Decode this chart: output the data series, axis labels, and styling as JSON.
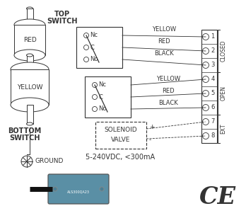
{
  "bg_color": "#ffffff",
  "top_switch_label": [
    "TOP",
    "SWITCH"
  ],
  "bottom_switch_label": [
    "BOTTOM",
    "SWITCH"
  ],
  "ground_label": "GROUND",
  "spec_label": "5-240VDC, <300mA",
  "top_switch_contacts": [
    "Nc",
    "C",
    "No"
  ],
  "bottom_switch_contacts": [
    "Nc",
    "C",
    "No"
  ],
  "top_wire_colors": [
    "YELLOW",
    "RED",
    "BLACK"
  ],
  "bottom_wire_colors": [
    "YELLOW",
    "RED",
    "BLACK"
  ],
  "terminal_numbers": [
    "1",
    "2",
    "3",
    "4",
    "5",
    "6",
    "7",
    "8"
  ],
  "section_labels": [
    "CLOSED",
    "OPEN",
    "EXT"
  ],
  "solenoid_label": [
    "SOLENOID",
    "VALVE"
  ],
  "solenoid_signs": [
    "+",
    "-"
  ],
  "cam_top_label": "RED",
  "cam_bottom_label": "YELLOW"
}
